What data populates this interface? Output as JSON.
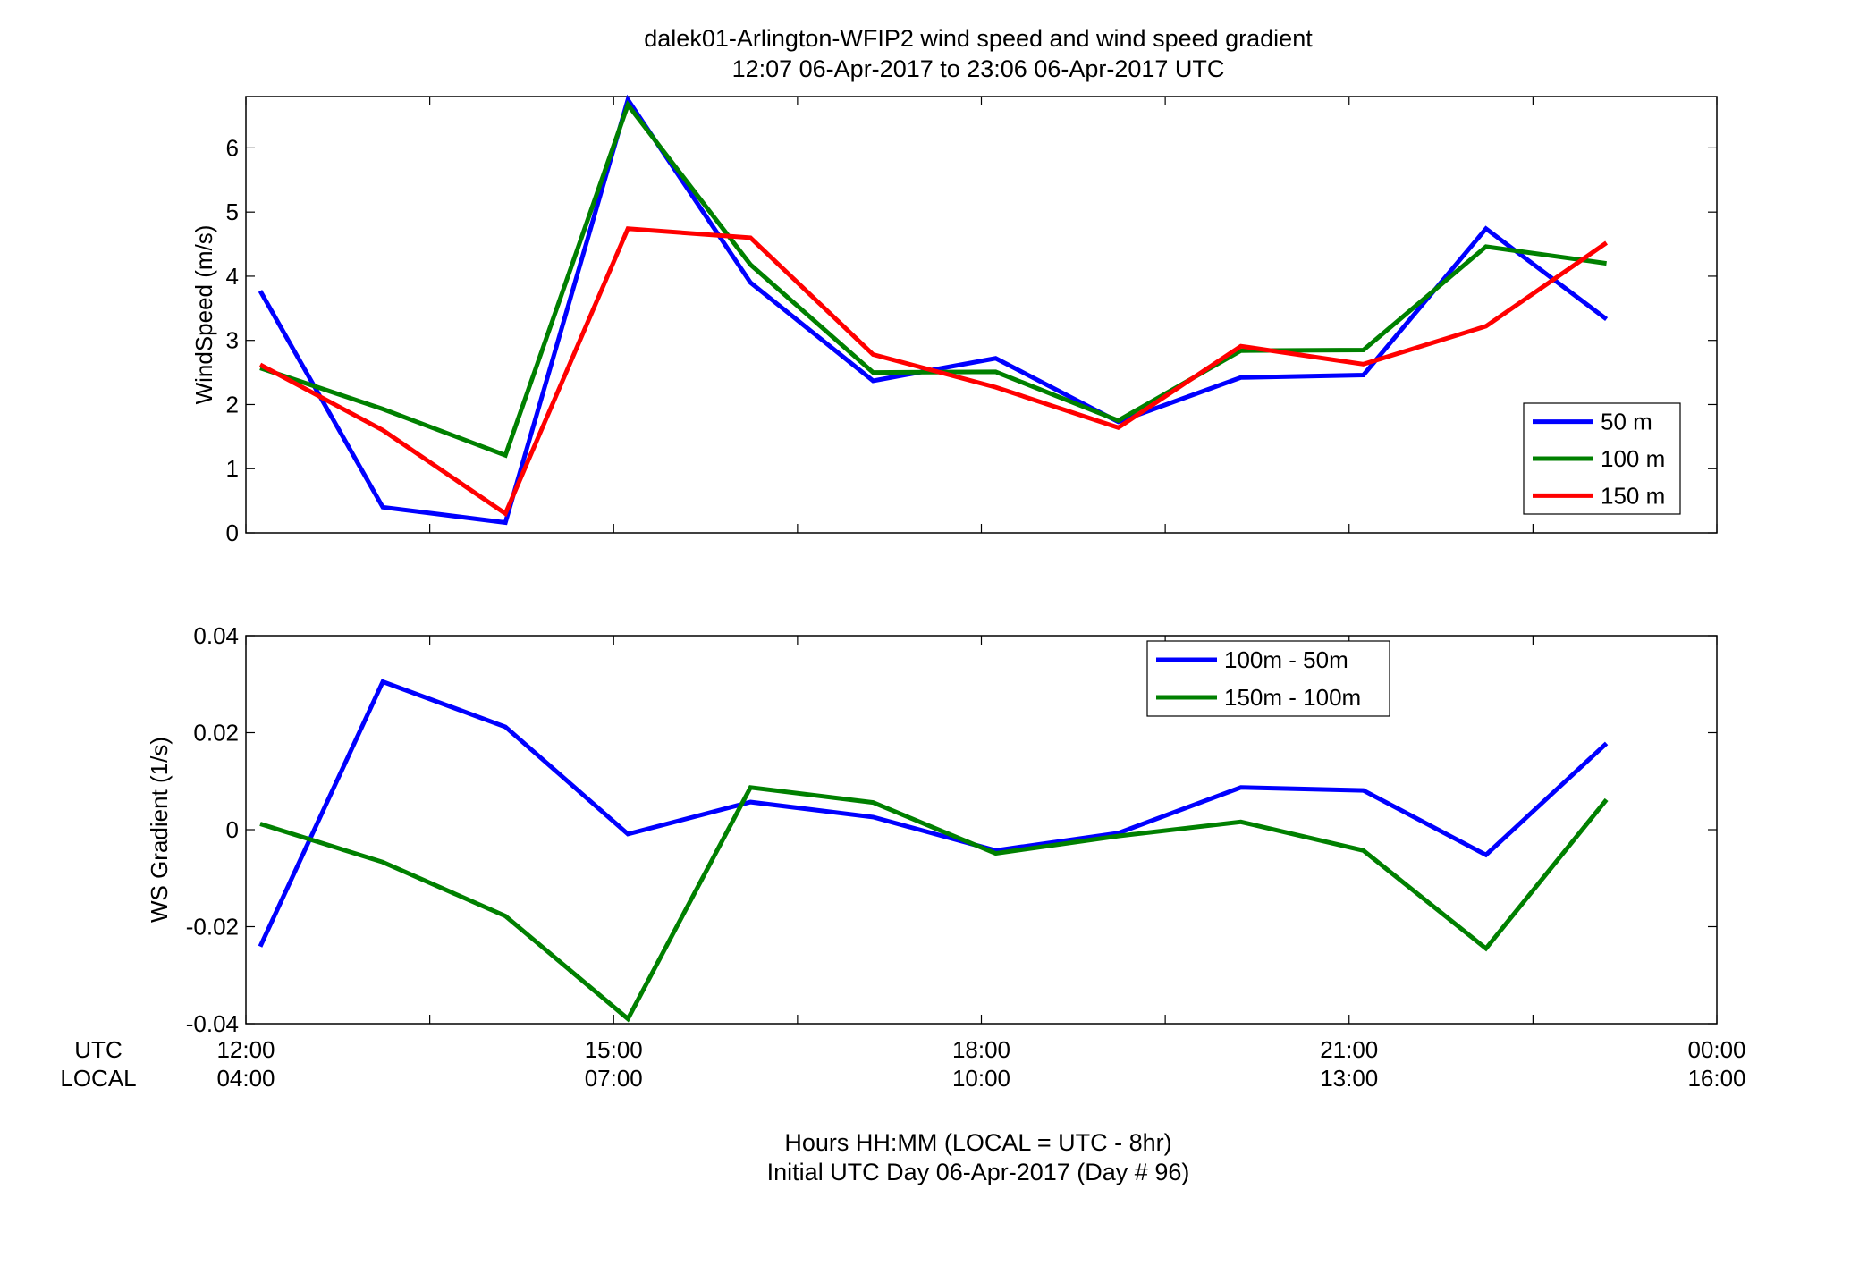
{
  "title_line1": "dalek01-Arlington-WFIP2  wind speed and wind speed gradient",
  "title_line2": "12:07 06-Apr-2017 to 23:06 06-Apr-2017  UTC",
  "xaxis": {
    "row1_label": "UTC",
    "row2_label": "LOCAL",
    "utc_ticks": [
      "12:00",
      "15:00",
      "18:00",
      "21:00",
      "00:00"
    ],
    "local_ticks": [
      "04:00",
      "07:00",
      "10:00",
      "13:00",
      "16:00"
    ],
    "label_line1": "Hours HH:MM  (LOCAL = UTC - 8hr)",
    "label_line2": "Initial UTC Day 06-Apr-2017 (Day # 96)"
  },
  "colors": {
    "blue": "#0000ff",
    "green": "#008000",
    "red": "#ff0000"
  },
  "chart_data": [
    {
      "type": "line",
      "ylabel": "WindSpeed (m/s)",
      "xlim": [
        "12:00",
        "00:00"
      ],
      "ylim": [
        0,
        6.8
      ],
      "yticks": [
        "0",
        "1",
        "2",
        "3",
        "4",
        "5",
        "6"
      ],
      "grid": false,
      "legend_position": "lower-right",
      "x": [
        "12:07",
        "13:07",
        "14:07",
        "15:07",
        "16:07",
        "17:07",
        "18:07",
        "19:07",
        "20:07",
        "21:07",
        "22:07",
        "23:06"
      ],
      "series": [
        {
          "name": "50 m",
          "color": "#0000ff",
          "values": [
            3.77,
            0.4,
            0.16,
            6.75,
            3.9,
            2.37,
            2.72,
            1.73,
            2.42,
            2.46,
            4.74,
            3.33
          ]
        },
        {
          "name": "100 m",
          "color": "#008000",
          "values": [
            2.57,
            1.93,
            1.21,
            6.67,
            4.18,
            2.5,
            2.51,
            1.75,
            2.84,
            2.85,
            4.46,
            4.2
          ]
        },
        {
          "name": "150 m",
          "color": "#ff0000",
          "values": [
            2.62,
            1.6,
            0.3,
            4.74,
            4.6,
            2.78,
            2.27,
            1.64,
            2.91,
            2.63,
            3.22,
            4.52
          ]
        }
      ]
    },
    {
      "type": "line",
      "ylabel": "WS Gradient (1/s)",
      "xlim": [
        "12:00",
        "00:00"
      ],
      "ylim": [
        -0.04,
        0.04
      ],
      "yticks": [
        "-0.04",
        "-0.02",
        "0",
        "0.02",
        "0.04"
      ],
      "grid": false,
      "legend_position": "upper-middle",
      "x": [
        "12:07",
        "13:07",
        "14:07",
        "15:07",
        "16:07",
        "17:07",
        "18:07",
        "19:07",
        "20:07",
        "21:07",
        "22:07",
        "23:06"
      ],
      "series": [
        {
          "name": "100m - 50m",
          "color": "#0000ff",
          "values": [
            -0.0241,
            0.0305,
            0.0212,
            -0.0009,
            0.0057,
            0.0026,
            -0.0043,
            -0.0007,
            0.0087,
            0.0081,
            -0.0052,
            0.0178
          ]
        },
        {
          "name": "150m - 100m",
          "color": "#008000",
          "values": [
            0.0012,
            -0.0067,
            -0.0178,
            -0.039,
            0.0087,
            0.0056,
            -0.0049,
            -0.0013,
            0.0016,
            -0.0043,
            -0.0245,
            0.0062
          ]
        }
      ]
    }
  ]
}
